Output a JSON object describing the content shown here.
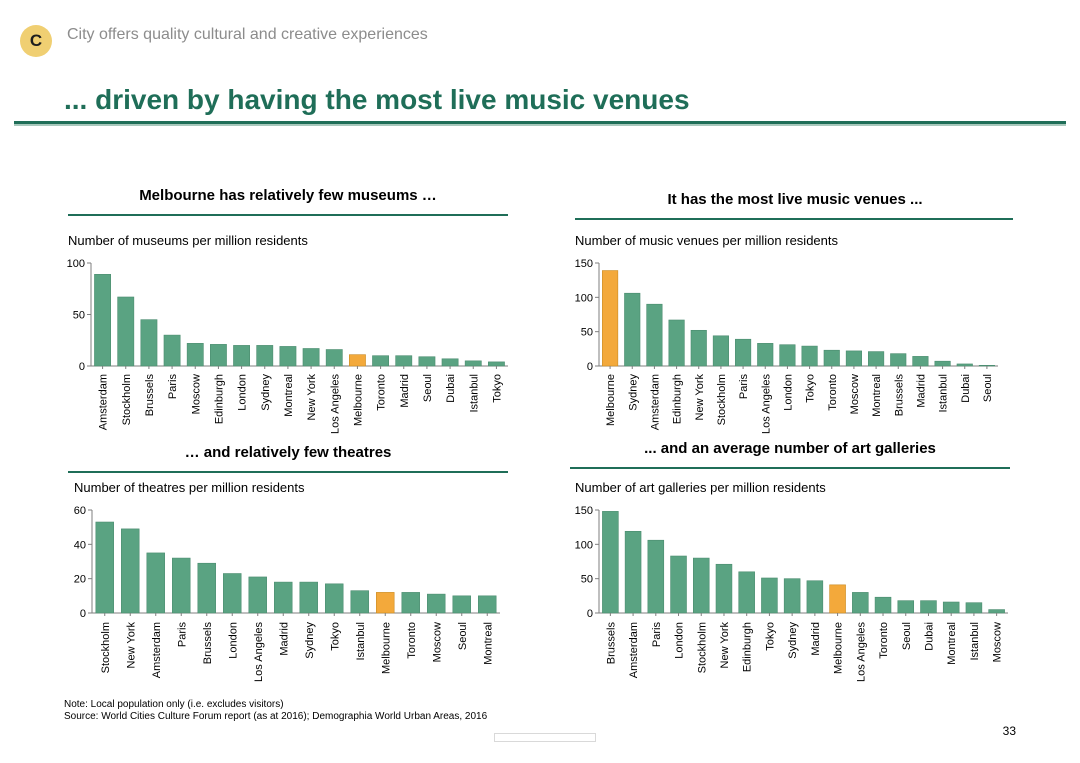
{
  "header": {
    "badge": "C",
    "section": "City offers quality cultural and creative experiences",
    "title": "... driven by having the most live music venues"
  },
  "colors": {
    "bar": "#5aa382",
    "highlight": "#f3a93b",
    "accent": "#1f6e58"
  },
  "panels": [
    {
      "title": "Melbourne has relatively few museums …",
      "subtitle": "Number of museums per million residents"
    },
    {
      "title": "It has the most live music venues ...",
      "subtitle": "Number of music venues per million residents"
    },
    {
      "title": "… and relatively few theatres",
      "subtitle": "Number of theatres per million residents"
    },
    {
      "title": "... and an average number of art galleries",
      "subtitle": "Number of art galleries per million residents"
    }
  ],
  "chart_data": [
    {
      "type": "bar",
      "title": "Melbourne has relatively few museums …",
      "ylabel": "Number of museums per million residents",
      "ylim": [
        0,
        100
      ],
      "yticks": [
        0,
        50,
        100
      ],
      "highlight": "Melbourne",
      "categories": [
        "Amsterdam",
        "Stockholm",
        "Brussels",
        "Paris",
        "Moscow",
        "Edinburgh",
        "London",
        "Sydney",
        "Montreal",
        "New York",
        "Los Angeles",
        "Melbourne",
        "Toronto",
        "Madrid",
        "Seoul",
        "Dubai",
        "Istanbul",
        "Tokyo"
      ],
      "values": [
        89,
        67,
        45,
        30,
        22,
        21,
        20,
        20,
        19,
        17,
        16,
        11,
        10,
        10,
        9,
        7,
        5,
        4
      ]
    },
    {
      "type": "bar",
      "title": "It has the most live music venues ...",
      "ylabel": "Number of music venues per million residents",
      "ylim": [
        0,
        150
      ],
      "yticks": [
        0,
        50,
        100,
        150
      ],
      "highlight": "Melbourne",
      "categories": [
        "Melbourne",
        "Sydney",
        "Amsterdam",
        "Edinburgh",
        "New York",
        "Stockholm",
        "Paris",
        "Los Angeles",
        "London",
        "Tokyo",
        "Toronto",
        "Moscow",
        "Montreal",
        "Brussels",
        "Madrid",
        "Istanbul",
        "Dubai",
        "Seoul"
      ],
      "values": [
        139,
        106,
        90,
        67,
        52,
        44,
        39,
        33,
        31,
        29,
        23,
        22,
        21,
        18,
        14,
        7,
        3,
        1
      ]
    },
    {
      "type": "bar",
      "title": "… and relatively few theatres",
      "ylabel": "Number of theatres per million residents",
      "ylim": [
        0,
        60
      ],
      "yticks": [
        0,
        20,
        40,
        60
      ],
      "highlight": "Melbourne",
      "categories": [
        "Stockholm",
        "New York",
        "Amsterdam",
        "Paris",
        "Brussels",
        "London",
        "Los Angeles",
        "Madrid",
        "Sydney",
        "Tokyo",
        "Istanbul",
        "Melbourne",
        "Toronto",
        "Moscow",
        "Seoul",
        "Montreal"
      ],
      "values": [
        53,
        49,
        35,
        32,
        29,
        23,
        21,
        18,
        18,
        17,
        13,
        12,
        12,
        11,
        10,
        10
      ]
    },
    {
      "type": "bar",
      "title": "... and an average number of art galleries",
      "ylabel": "Number of art galleries per million residents",
      "ylim": [
        0,
        150
      ],
      "yticks": [
        0,
        50,
        100,
        150
      ],
      "highlight": "Melbourne",
      "categories": [
        "Brussels",
        "Amsterdam",
        "Paris",
        "London",
        "Stockholm",
        "New York",
        "Edinburgh",
        "Tokyo",
        "Sydney",
        "Madrid",
        "Melbourne",
        "Los Angeles",
        "Toronto",
        "Seoul",
        "Dubai",
        "Montreal",
        "Istanbul",
        "Moscow"
      ],
      "values": [
        148,
        119,
        106,
        83,
        80,
        71,
        60,
        51,
        50,
        47,
        41,
        30,
        23,
        18,
        18,
        16,
        15,
        5
      ]
    }
  ],
  "footer": {
    "note": "Note: Local population only (i.e. excludes visitors)",
    "source": "Source: World Cities Culture Forum report (as at 2016); Demographia World Urban Areas, 2016",
    "page": "33"
  }
}
